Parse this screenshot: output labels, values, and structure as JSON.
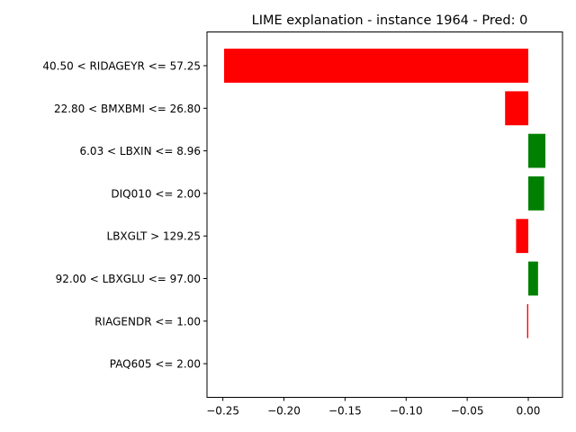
{
  "chart_data": {
    "type": "bar",
    "orientation": "horizontal",
    "title": "LIME explanation - instance 1964 - Pred: 0",
    "xlabel": "",
    "ylabel": "",
    "categories": [
      "40.50 < RIDAGEYR <= 57.25",
      "22.80 < BMXBMI <= 26.80",
      "6.03 < LBXIN <= 8.96",
      "DIQ010 <= 2.00",
      "LBXGLT > 129.25",
      "92.00 < LBXGLU <= 97.00",
      "RIAGENDR <= 1.00",
      "PAQ605 <= 2.00"
    ],
    "values": [
      -0.249,
      -0.019,
      0.014,
      0.013,
      -0.01,
      0.008,
      -0.001,
      0.0
    ],
    "colors": {
      "positive": "#008000",
      "negative": "#ff0000"
    },
    "xlim": [
      -0.263,
      0.028
    ],
    "xticks": [
      -0.25,
      -0.2,
      -0.15,
      -0.1,
      -0.05,
      0.0
    ],
    "xtick_labels": [
      "−0.25",
      "−0.20",
      "−0.15",
      "−0.10",
      "−0.05",
      "0.00"
    ],
    "grid": false,
    "legend": "none"
  }
}
